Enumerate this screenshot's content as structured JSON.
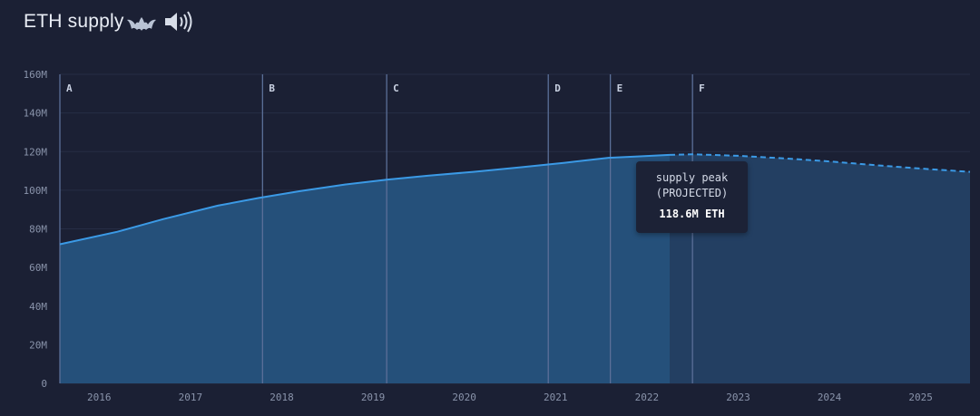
{
  "header": {
    "title": "ETH supply",
    "icons": [
      "bat-icon",
      "speaker-icon"
    ]
  },
  "tooltip": {
    "line1": "supply peak",
    "line2": "(PROJECTED)",
    "value": "118.6M ETH"
  },
  "colors": {
    "background": "#1b2034",
    "line": "#3b9ae6",
    "area": "#25507a",
    "projected_area": "#233f62",
    "event_line": "#5b6f98"
  },
  "chart_data": {
    "type": "area",
    "title": "ETH supply",
    "ylim": [
      0,
      160
    ],
    "yticks": [
      0,
      20,
      40,
      60,
      80,
      100,
      120,
      140,
      160
    ],
    "ytick_labels": [
      "0",
      "20M",
      "40M",
      "60M",
      "80M",
      "100M",
      "120M",
      "140M",
      "160M"
    ],
    "xlim": [
      2015.57,
      2025.54
    ],
    "xticks": [
      2016,
      2017,
      2018,
      2019,
      2020,
      2021,
      2022,
      2023,
      2024,
      2025
    ],
    "xtick_labels": [
      "2016",
      "2017",
      "2018",
      "2019",
      "2020",
      "2021",
      "2022",
      "2023",
      "2024",
      "2025"
    ],
    "grid": true,
    "series": [
      {
        "x": [
          2015.57,
          2016.2,
          2016.7,
          2017.3,
          2017.75,
          2018.2,
          2018.7,
          2019.15,
          2019.6,
          2020.1,
          2020.6,
          2021.1,
          2021.58,
          2021.9,
          2022.25
        ],
        "values": [
          72.0,
          78.5,
          85.0,
          92.0,
          96.0,
          99.5,
          103.0,
          105.5,
          107.5,
          109.5,
          111.8,
          114.2,
          116.8,
          117.5,
          118.3
        ]
      },
      {
        "projected": true,
        "x": [
          2022.25,
          2022.5,
          2023.0,
          2023.5,
          2024.0,
          2024.5,
          2025.0,
          2025.54
        ],
        "values": [
          118.3,
          118.6,
          117.8,
          116.5,
          114.9,
          113.0,
          111.2,
          109.5
        ]
      }
    ],
    "events": [
      {
        "label": "A",
        "x": 2015.57
      },
      {
        "label": "B",
        "x": 2017.79
      },
      {
        "label": "C",
        "x": 2019.15
      },
      {
        "label": "D",
        "x": 2020.92
      },
      {
        "label": "E",
        "x": 2021.6
      },
      {
        "label": "F",
        "x": 2022.5
      }
    ]
  }
}
